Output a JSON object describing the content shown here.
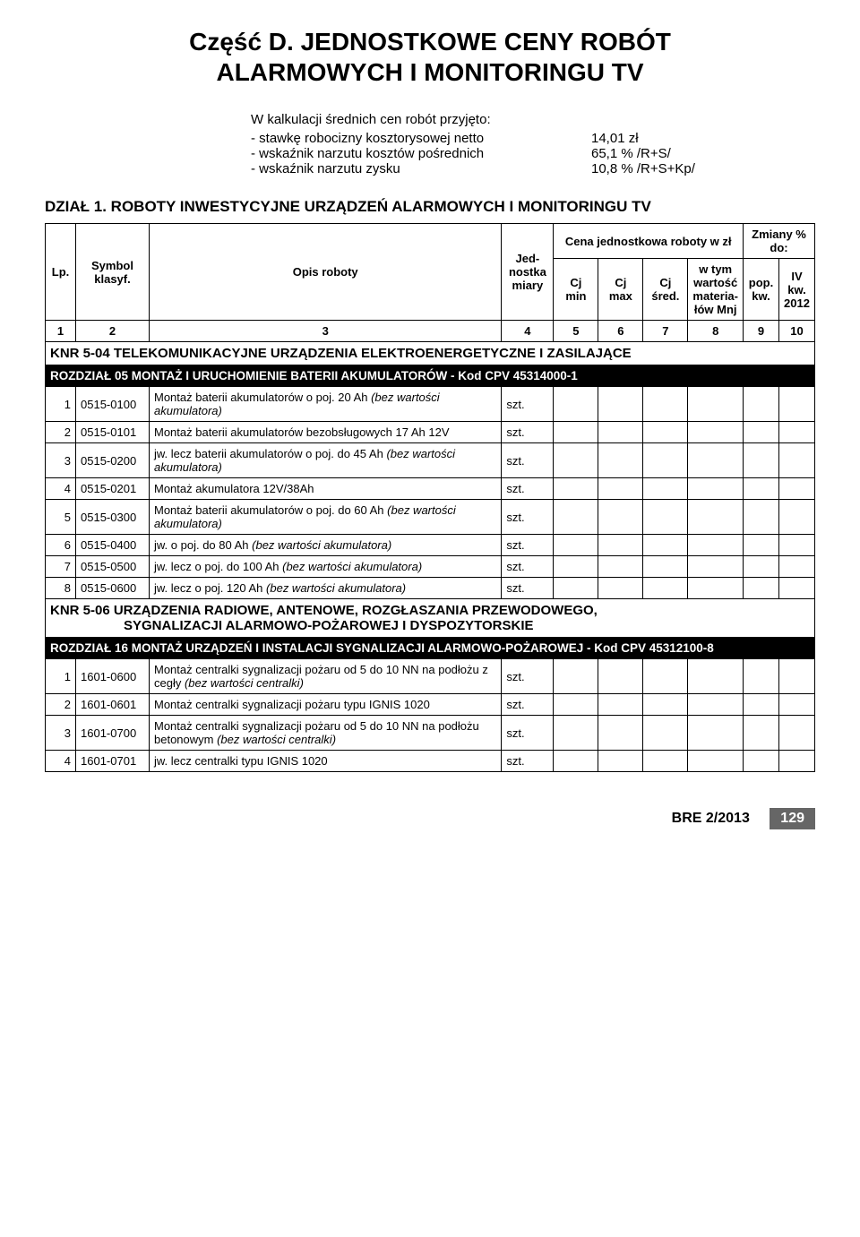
{
  "title_line1": "Część D. JEDNOSTKOWE CENY ROBÓT",
  "title_line2": "ALARMOWYCH I MONITORINGU TV",
  "calc": {
    "intro": "W kalkulacji średnich cen robót przyjęto:",
    "rows": [
      {
        "label": "- stawkę robocizny kosztorysowej netto",
        "value": "14,01 zł"
      },
      {
        "label": "- wskaźnik narzutu kosztów pośrednich",
        "value": "65,1 % /R+S/"
      },
      {
        "label": "- wskaźnik narzutu zysku",
        "value": "10,8 % /R+S+Kp/"
      }
    ]
  },
  "dzial": "DZIAŁ 1. ROBOTY INWESTYCYJNE URZĄDZEŃ ALARMOWYCH I MONITORINGU TV",
  "header": {
    "lp": "Lp.",
    "symbol": "Symbol klasyf.",
    "opis": "Opis roboty",
    "jed": "Jed-nostka miary",
    "cena_group": "Cena jednostkowa roboty w zł",
    "cjmin": "Cj min",
    "cjmax": "Cj max",
    "cjsred": "Cj śred.",
    "wtym": "w tym wartość materia-łów Mnj",
    "zmiany_group": "Zmiany % do:",
    "pop": "pop. kw.",
    "iv": "IV kw. 2012",
    "nums": [
      "1",
      "2",
      "3",
      "4",
      "5",
      "6",
      "7",
      "8",
      "9",
      "10"
    ]
  },
  "knr504": "KNR 5-04 TELEKOMUNIKACYJNE URZĄDZENIA ELEKTROENERGETYCZNE I ZASILAJĄCE",
  "rozdzial05": "ROZDZIAŁ 05   MONTAŻ I URUCHOMIENIE BATERII AKUMULATORÓW - Kod CPV 45314000-1",
  "r1": [
    {
      "lp": "1",
      "sym": "0515-0100",
      "opis": "Montaż baterii akumulatorów o poj. 20 Ah <span class='italic'>(bez wartości akumulatora)</span>",
      "jed": "szt."
    },
    {
      "lp": "2",
      "sym": "0515-0101",
      "opis": "Montaż baterii akumulatorów bezobsługowych 17 Ah 12V",
      "jed": "szt."
    },
    {
      "lp": "3",
      "sym": "0515-0200",
      "opis": "jw. lecz baterii akumulatorów o poj. do 45 Ah <span class='italic'>(bez wartości akumulatora)</span>",
      "jed": "szt."
    },
    {
      "lp": "4",
      "sym": "0515-0201",
      "opis": "Montaż akumulatora 12V/38Ah",
      "jed": "szt."
    },
    {
      "lp": "5",
      "sym": "0515-0300",
      "opis": "Montaż baterii akumulatorów o poj. do 60 Ah <span class='italic'>(bez wartości akumulatora)</span>",
      "jed": "szt."
    },
    {
      "lp": "6",
      "sym": "0515-0400",
      "opis": "jw. o poj. do 80 Ah <span class='italic'>(bez wartości akumulatora)</span>",
      "jed": "szt."
    },
    {
      "lp": "7",
      "sym": "0515-0500",
      "opis": "jw. lecz o poj. do 100 Ah <span class='italic'>(bez wartości akumulatora)</span>",
      "jed": "szt."
    },
    {
      "lp": "8",
      "sym": "0515-0600",
      "opis": "jw. lecz o poj. 120 Ah <span class='italic'>(bez wartości akumulatora)</span>",
      "jed": "szt."
    }
  ],
  "knr506_l1": "KNR 5-06 URZĄDZENIA RADIOWE, ANTENOWE, ROZGŁASZANIA PRZEWODOWEGO,",
  "knr506_l2": "SYGNALIZACJI ALARMOWO-POŻAROWEJ I DYSPOZYTORSKIE",
  "rozdzial16": "ROZDZIAŁ 16   MONTAŻ URZĄDZEŃ I INSTALACJI SYGNALIZACJI ALARMOWO-POŻAROWEJ - Kod CPV 45312100-8",
  "r2": [
    {
      "lp": "1",
      "sym": "1601-0600",
      "opis": "Montaż centralki sygnalizacji pożaru od 5 do 10 NN na podłożu z cegły <span class='italic'>(bez wartości centralki)</span>",
      "jed": "szt."
    },
    {
      "lp": "2",
      "sym": "1601-0601",
      "opis": "Montaż centralki sygnalizacji pożaru typu IGNIS 1020",
      "jed": "szt."
    },
    {
      "lp": "3",
      "sym": "1601-0700",
      "opis": "Montaż centralki sygnalizacji pożaru od 5 do 10 NN na podłożu betonowym <span class='italic'>(bez wartości centralki)</span>",
      "jed": "szt."
    },
    {
      "lp": "4",
      "sym": "1601-0701",
      "opis": "jw. lecz centralki typu IGNIS 1020",
      "jed": "szt."
    }
  ],
  "footer": {
    "bre": "BRE 2/2013",
    "page": "129"
  },
  "colors": {
    "black": "#000000",
    "white": "#ffffff",
    "page_grey": "#666666"
  }
}
